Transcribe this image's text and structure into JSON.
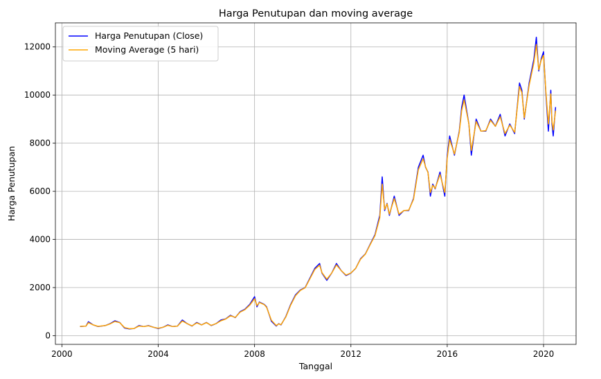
{
  "chart_data": {
    "type": "line",
    "title": "Harga Penutupan dan moving average",
    "xlabel": "Tanggal",
    "ylabel": "Harga Penutupan",
    "xlim": [
      1999.73,
      2021.35
    ],
    "ylim": [
      -360,
      13000
    ],
    "x_ticks": [
      2000,
      2004,
      2008,
      2012,
      2016,
      2020
    ],
    "y_ticks": [
      0,
      2000,
      4000,
      6000,
      8000,
      10000,
      12000
    ],
    "grid": true,
    "legend": "top-left",
    "series": [
      {
        "name": "Harga Penutupan (Close)",
        "color": "#0000ff",
        "x": [
          2000.75,
          2001.0,
          2001.1,
          2001.3,
          2001.5,
          2001.8,
          2002.0,
          2002.2,
          2002.4,
          2002.6,
          2002.8,
          2003.0,
          2003.2,
          2003.4,
          2003.6,
          2003.8,
          2004.0,
          2004.2,
          2004.4,
          2004.6,
          2004.8,
          2005.0,
          2005.2,
          2005.4,
          2005.6,
          2005.8,
          2006.0,
          2006.2,
          2006.4,
          2006.6,
          2006.8,
          2007.0,
          2007.2,
          2007.4,
          2007.6,
          2007.8,
          2008.0,
          2008.1,
          2008.2,
          2008.4,
          2008.5,
          2008.7,
          2008.9,
          2009.0,
          2009.1,
          2009.3,
          2009.5,
          2009.7,
          2009.9,
          2010.1,
          2010.3,
          2010.5,
          2010.7,
          2010.8,
          2011.0,
          2011.2,
          2011.4,
          2011.6,
          2011.8,
          2012.0,
          2012.2,
          2012.4,
          2012.6,
          2012.8,
          2013.0,
          2013.2,
          2013.3,
          2013.4,
          2013.5,
          2013.6,
          2013.8,
          2014.0,
          2014.2,
          2014.4,
          2014.6,
          2014.8,
          2015.0,
          2015.1,
          2015.2,
          2015.3,
          2015.4,
          2015.5,
          2015.7,
          2015.9,
          2016.0,
          2016.1,
          2016.3,
          2016.5,
          2016.6,
          2016.7,
          2016.9,
          2017.0,
          2017.2,
          2017.4,
          2017.6,
          2017.8,
          2018.0,
          2018.2,
          2018.4,
          2018.6,
          2018.8,
          2019.0,
          2019.1,
          2019.2,
          2019.4,
          2019.6,
          2019.7,
          2019.8,
          2019.9,
          2020.0,
          2020.1,
          2020.2,
          2020.3,
          2020.35,
          2020.4,
          2020.5
        ],
        "y": [
          380,
          400,
          580,
          450,
          380,
          420,
          500,
          620,
          550,
          320,
          280,
          300,
          420,
          380,
          420,
          350,
          300,
          350,
          450,
          380,
          400,
          650,
          500,
          400,
          550,
          450,
          550,
          420,
          500,
          650,
          700,
          850,
          750,
          1000,
          1100,
          1300,
          1620,
          1200,
          1400,
          1300,
          1200,
          600,
          400,
          500,
          450,
          800,
          1300,
          1700,
          1900,
          2000,
          2400,
          2800,
          3000,
          2600,
          2300,
          2600,
          3000,
          2700,
          2500,
          2600,
          2800,
          3200,
          3400,
          3800,
          4200,
          5000,
          6600,
          5200,
          5500,
          5000,
          5800,
          5000,
          5200,
          5200,
          5700,
          7000,
          7500,
          7000,
          6800,
          5800,
          6300,
          6100,
          6800,
          5800,
          7500,
          8300,
          7500,
          8500,
          9500,
          10000,
          8800,
          7500,
          9000,
          8500,
          8500,
          9000,
          8700,
          9200,
          8300,
          8800,
          8400,
          10500,
          10200,
          9000,
          10500,
          11500,
          12400,
          11000,
          11500,
          11800,
          10000,
          8500,
          10200,
          8800,
          8300,
          9500
        ]
      },
      {
        "name": "Moving Average (5 hari)",
        "color": "#ffa500",
        "x": [
          2000.75,
          2001.0,
          2001.1,
          2001.3,
          2001.5,
          2001.8,
          2002.0,
          2002.2,
          2002.4,
          2002.6,
          2002.8,
          2003.0,
          2003.2,
          2003.4,
          2003.6,
          2003.8,
          2004.0,
          2004.2,
          2004.4,
          2004.6,
          2004.8,
          2005.0,
          2005.2,
          2005.4,
          2005.6,
          2005.8,
          2006.0,
          2006.2,
          2006.4,
          2006.6,
          2006.8,
          2007.0,
          2007.2,
          2007.4,
          2007.6,
          2007.8,
          2008.0,
          2008.1,
          2008.2,
          2008.4,
          2008.5,
          2008.7,
          2008.9,
          2009.0,
          2009.1,
          2009.3,
          2009.5,
          2009.7,
          2009.9,
          2010.1,
          2010.3,
          2010.5,
          2010.7,
          2010.8,
          2011.0,
          2011.2,
          2011.4,
          2011.6,
          2011.8,
          2012.0,
          2012.2,
          2012.4,
          2012.6,
          2012.8,
          2013.0,
          2013.2,
          2013.3,
          2013.4,
          2013.5,
          2013.6,
          2013.8,
          2014.0,
          2014.2,
          2014.4,
          2014.6,
          2014.8,
          2015.0,
          2015.1,
          2015.2,
          2015.3,
          2015.4,
          2015.5,
          2015.7,
          2015.9,
          2016.0,
          2016.1,
          2016.3,
          2016.5,
          2016.6,
          2016.7,
          2016.9,
          2017.0,
          2017.2,
          2017.4,
          2017.6,
          2017.8,
          2018.0,
          2018.2,
          2018.4,
          2018.6,
          2018.8,
          2019.0,
          2019.1,
          2019.2,
          2019.4,
          2019.6,
          2019.7,
          2019.8,
          2019.9,
          2020.0,
          2020.1,
          2020.2,
          2020.3,
          2020.35,
          2020.4,
          2020.5
        ],
        "y": [
          390,
          400,
          540,
          450,
          390,
          420,
          490,
          590,
          540,
          340,
          290,
          300,
          400,
          380,
          410,
          350,
          310,
          350,
          430,
          380,
          400,
          610,
          500,
          410,
          530,
          450,
          540,
          430,
          500,
          620,
          690,
          830,
          760,
          980,
          1080,
          1270,
          1540,
          1250,
          1380,
          1290,
          1180,
          640,
          420,
          490,
          460,
          780,
          1270,
          1660,
          1880,
          1990,
          2370,
          2750,
          2930,
          2620,
          2350,
          2600,
          2940,
          2700,
          2520,
          2610,
          2800,
          3180,
          3390,
          3780,
          4160,
          4900,
          6300,
          5250,
          5480,
          5050,
          5700,
          5050,
          5200,
          5220,
          5660,
          6900,
          7350,
          7020,
          6780,
          5950,
          6250,
          6120,
          6700,
          5950,
          7380,
          8150,
          7550,
          8450,
          9350,
          9800,
          8800,
          7700,
          8900,
          8500,
          8520,
          8950,
          8700,
          9100,
          8400,
          8750,
          8450,
          10350,
          10100,
          9050,
          10400,
          11350,
          12100,
          11050,
          11450,
          11650,
          10100,
          8800,
          10050,
          8900,
          8550,
          9350
        ]
      }
    ]
  }
}
